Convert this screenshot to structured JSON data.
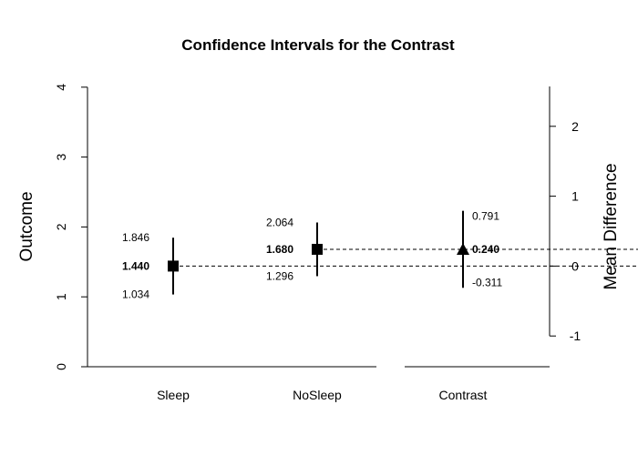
{
  "chart_data": {
    "type": "interval",
    "title": "Confidence Intervals for the Contrast",
    "left_axis": {
      "label": "Outcome",
      "ylim": [
        0,
        4
      ],
      "ticks": [
        "0",
        "1",
        "2",
        "3",
        "4"
      ]
    },
    "right_axis": {
      "label": "Mean Difference",
      "ticks": [
        "-1",
        "0",
        "1",
        "2"
      ]
    },
    "categories": [
      "Sleep",
      "NoSleep",
      "Contrast"
    ],
    "points": [
      {
        "name": "Sleep",
        "marker": "square",
        "estimate": 1.44,
        "lower": 1.034,
        "upper": 1.846,
        "labels": {
          "estimate": "1.440",
          "lower": "1.034",
          "upper": "1.846"
        }
      },
      {
        "name": "NoSleep",
        "marker": "square",
        "estimate": 1.68,
        "lower": 1.296,
        "upper": 2.064,
        "labels": {
          "estimate": "1.680",
          "lower": "1.296",
          "upper": "2.064"
        }
      },
      {
        "name": "Contrast",
        "marker": "triangle",
        "estimate": 0.24,
        "lower": -0.311,
        "upper": 0.791,
        "labels": {
          "estimate": "0.240",
          "lower": "-0.311",
          "upper": "0.791"
        }
      }
    ],
    "reference_lines": "dashed"
  }
}
